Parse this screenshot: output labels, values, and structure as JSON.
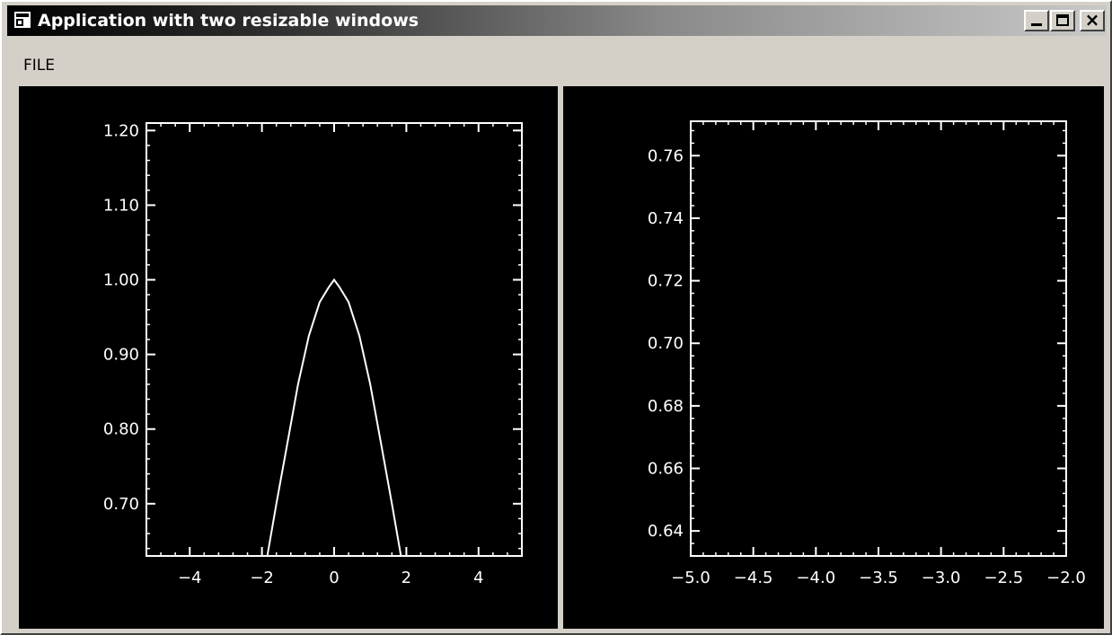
{
  "window": {
    "title": "Application with two resizable windows",
    "controls": {
      "minimize_icon": "minimize-icon",
      "maximize_icon": "maximize-icon",
      "close_icon": "close-icon"
    }
  },
  "menu": {
    "items": [
      {
        "label": "FILE"
      }
    ]
  },
  "colors": {
    "plot_background": "#000000",
    "plot_foreground": "#ffffff",
    "chrome": "#d4d0c8"
  },
  "chart_data": [
    {
      "type": "line",
      "title": "",
      "xlabel": "",
      "ylabel": "",
      "xlim": [
        -5.2,
        5.2
      ],
      "ylim": [
        0.63,
        1.21
      ],
      "x_ticks": [
        -4,
        -2,
        0,
        2,
        4
      ],
      "x_tick_labels": [
        "−4",
        "−2",
        "0",
        "2",
        "4"
      ],
      "y_ticks": [
        0.7,
        0.8,
        0.9,
        1.0,
        1.1,
        1.2
      ],
      "y_tick_labels": [
        "0.70",
        "0.80",
        "0.90",
        "1.00",
        "1.10",
        "1.20"
      ],
      "grid": false,
      "series": [
        {
          "x": [
            -1.85,
            -1.6,
            -1.3,
            -1.0,
            -0.7,
            -0.4,
            -0.15,
            0.0,
            0.15,
            0.4,
            0.7,
            1.0,
            1.3,
            1.6,
            1.85
          ],
          "values": [
            0.63,
            0.7,
            0.78,
            0.86,
            0.925,
            0.97,
            0.99,
            1.0,
            0.99,
            0.97,
            0.925,
            0.86,
            0.78,
            0.7,
            0.63
          ]
        }
      ]
    },
    {
      "type": "line",
      "title": "",
      "xlabel": "",
      "ylabel": "",
      "xlim": [
        -5.0,
        -2.0
      ],
      "ylim": [
        0.632,
        0.771
      ],
      "x_ticks": [
        -5.0,
        -4.5,
        -4.0,
        -3.5,
        -3.0,
        -2.5,
        -2.0
      ],
      "x_tick_labels": [
        "−5.0",
        "−4.5",
        "−4.0",
        "−3.5",
        "−3.0",
        "−2.5",
        "−2.0"
      ],
      "y_ticks": [
        0.64,
        0.66,
        0.68,
        0.7,
        0.72,
        0.74,
        0.76
      ],
      "y_tick_labels": [
        "0.64",
        "0.66",
        "0.68",
        "0.70",
        "0.72",
        "0.74",
        "0.76"
      ],
      "grid": false,
      "series": []
    }
  ]
}
